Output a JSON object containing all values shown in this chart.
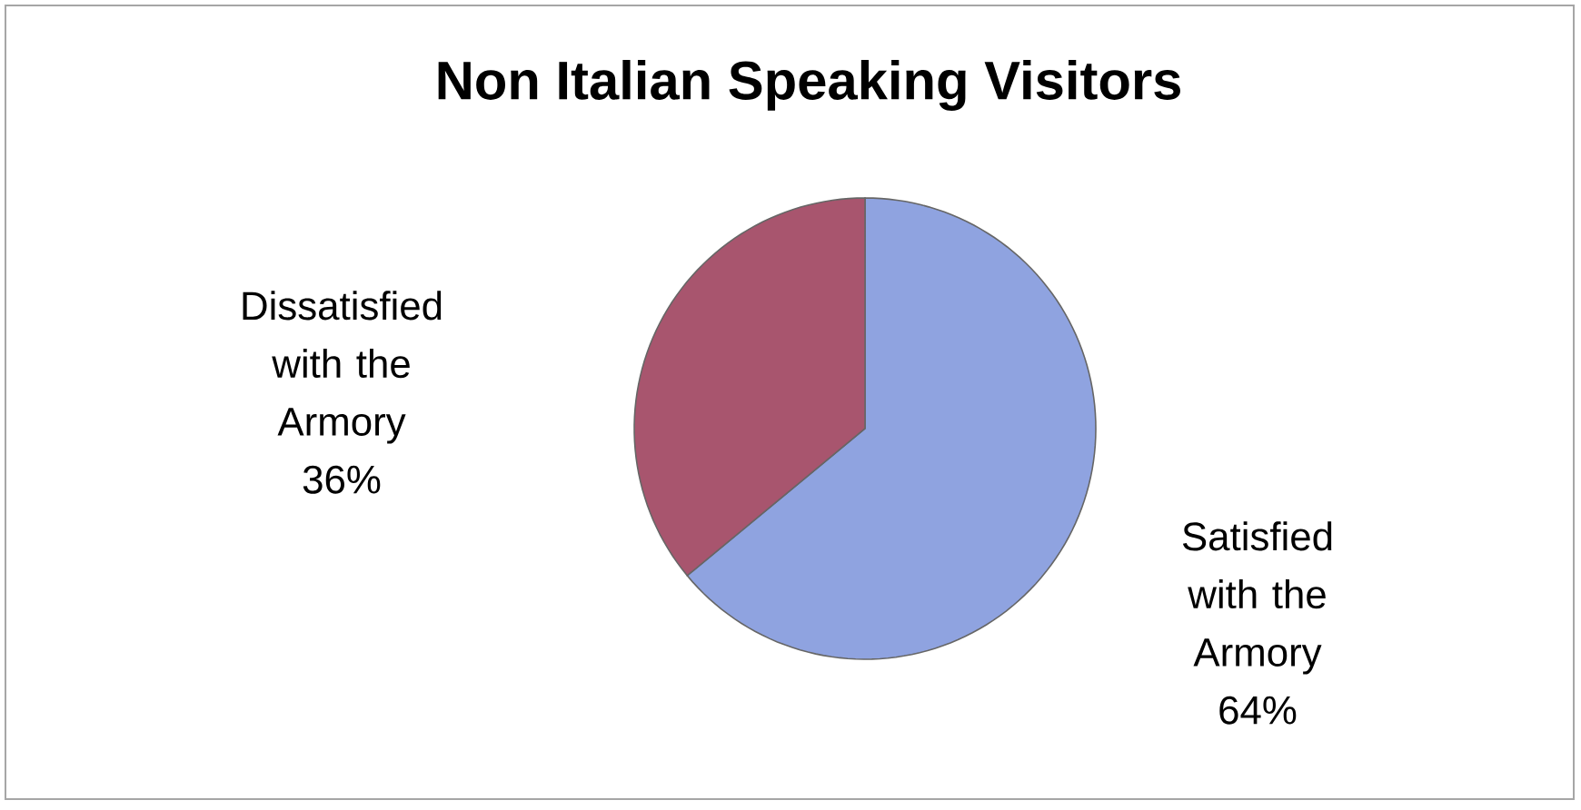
{
  "chart_data": {
    "type": "pie",
    "title": "Non Italian Speaking Visitors",
    "categories": [
      "Satisfied with the Armory",
      "Dissatisfied with the Armory"
    ],
    "values": [
      64,
      36
    ],
    "value_labels": [
      "64%",
      "36%"
    ],
    "colors": [
      "#8fa3e0",
      "#a8556e"
    ]
  }
}
